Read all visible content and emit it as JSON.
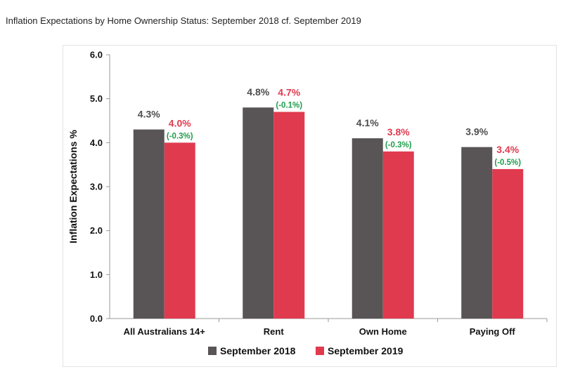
{
  "page_title": "Inflation Expectations by Home Ownership Status: September 2018 cf. September 2019",
  "colors": {
    "series_2018": "#595556",
    "series_2019": "#e03a4f",
    "change": "#1e9e4a"
  },
  "chart_data": {
    "type": "bar",
    "title": "Inflation Expectations by Home Ownership Status: September 2018 cf. September 2019",
    "xlabel": "",
    "ylabel": "Inflation Expectations %",
    "ylim": [
      0,
      6
    ],
    "yticks": [
      "0.0",
      "1.0",
      "2.0",
      "3.0",
      "4.0",
      "5.0",
      "6.0"
    ],
    "grid": false,
    "legend_position": "bottom",
    "categories": [
      "All Australians 14+",
      "Rent",
      "Own Home",
      "Paying Off"
    ],
    "series": [
      {
        "name": "September 2018",
        "values": [
          4.3,
          4.8,
          4.1,
          3.9
        ],
        "labels": [
          "4.3%",
          "4.8%",
          "4.1%",
          "3.9%"
        ]
      },
      {
        "name": "September 2019",
        "values": [
          4.0,
          4.7,
          3.8,
          3.4
        ],
        "labels": [
          "4.0%",
          "4.7%",
          "3.8%",
          "3.4%"
        ]
      }
    ],
    "change_labels": [
      "(-0.3%)",
      "(-0.1%)",
      "(-0.3%)",
      "(-0.5%)"
    ]
  }
}
